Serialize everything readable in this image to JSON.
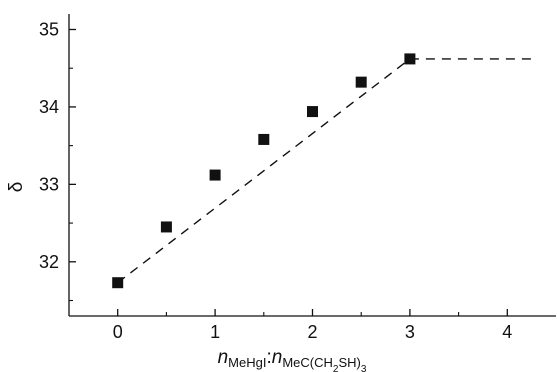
{
  "chart_data": {
    "type": "scatter",
    "title": "",
    "ylabel": "δ",
    "xlabel": {
      "n1": "n",
      "sub1": "MeHgI",
      "colon": ":",
      "n2": "n",
      "sub2": "MeC(CH",
      "sub2b": "2",
      "sub2c": "SH)",
      "sub2d": "3"
    },
    "xlim": [
      -0.5,
      4.5
    ],
    "ylim": [
      31.3,
      35.2
    ],
    "xticks": [
      0,
      1,
      2,
      3,
      4
    ],
    "xtick_labels": [
      "0",
      "1",
      "2",
      "3",
      "4"
    ],
    "yticks": [
      32,
      33,
      34,
      35
    ],
    "ytick_labels": [
      "32",
      "33",
      "34",
      "35"
    ],
    "grid": false,
    "legend": "none",
    "points": [
      {
        "x": 0.0,
        "y": 31.73
      },
      {
        "x": 0.5,
        "y": 32.45
      },
      {
        "x": 1.0,
        "y": 33.12
      },
      {
        "x": 1.5,
        "y": 33.58
      },
      {
        "x": 2.0,
        "y": 33.94
      },
      {
        "x": 2.5,
        "y": 34.32
      },
      {
        "x": 3.0,
        "y": 34.62
      }
    ],
    "fit_lines": [
      {
        "style": "dashed",
        "points": [
          [
            0.0,
            31.73
          ],
          [
            3.0,
            34.62
          ]
        ]
      },
      {
        "style": "dashed",
        "points": [
          [
            3.0,
            34.62
          ],
          [
            4.3,
            34.62
          ]
        ]
      }
    ],
    "colors": {
      "marker": "#111111",
      "line": "#111111",
      "axis": "#111111"
    }
  }
}
